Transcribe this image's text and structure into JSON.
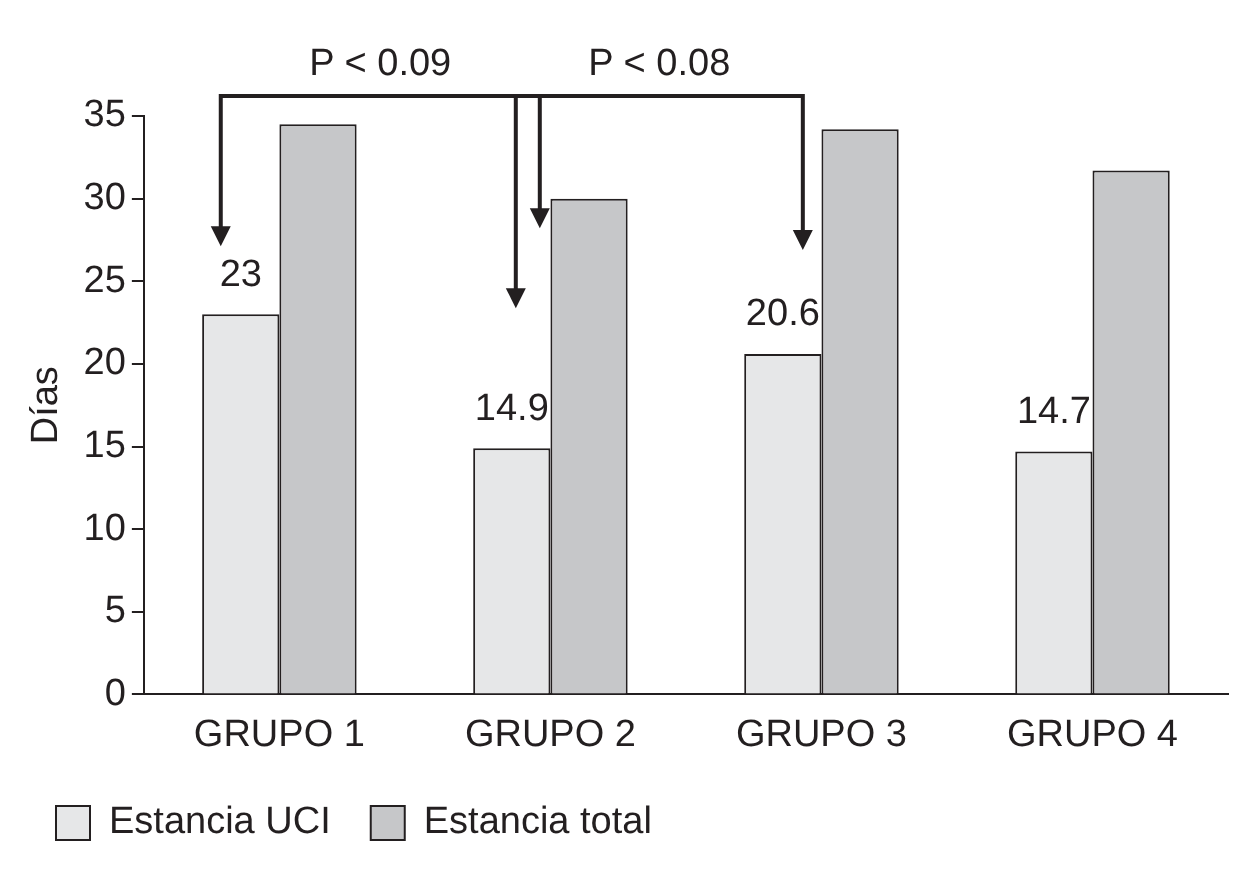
{
  "chart_data": {
    "type": "bar",
    "ylabel": "Días",
    "categories": [
      "GRUPO 1",
      "GRUPO 2",
      "GRUPO 3",
      "GRUPO 4"
    ],
    "series": [
      {
        "name": "Estancia UCI",
        "color": "#e6e7e8",
        "values": [
          23,
          14.9,
          20.6,
          14.7
        ],
        "value_labels": [
          "23",
          "14.9",
          "20.6",
          "14.7"
        ]
      },
      {
        "name": "Estancia total",
        "color": "#c6c7c9",
        "values": [
          34.5,
          30,
          34.2,
          31.7
        ]
      }
    ],
    "ylim": [
      0,
      35
    ],
    "yticks": [
      0,
      5,
      10,
      15,
      20,
      25,
      30,
      35
    ],
    "grid": false,
    "legend": "bottom",
    "annotations": [
      "P < 0.09",
      "P < 0.08"
    ]
  }
}
